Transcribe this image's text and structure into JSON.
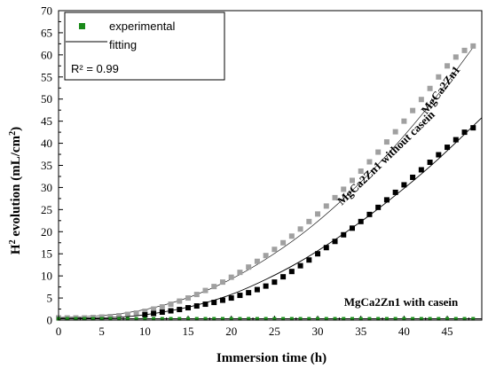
{
  "chart_data": {
    "type": "scatter",
    "xlabel": "Immersion time (h)",
    "ylabel": "H2 evolution (mL/cm2)",
    "xlim": [
      0,
      49
    ],
    "ylim": [
      0,
      70
    ],
    "xticks": [
      0,
      5,
      10,
      15,
      20,
      25,
      30,
      35,
      40,
      45
    ],
    "yticks": [
      0,
      5,
      10,
      15,
      20,
      25,
      30,
      35,
      40,
      45,
      50,
      55,
      60,
      65,
      70
    ],
    "grid": false,
    "legend": {
      "position": "top-left",
      "entries": [
        {
          "label": "experimental",
          "marker": "square",
          "color": "#1a8a1a"
        },
        {
          "label": "fitting",
          "marker": "line",
          "color": "#000000"
        },
        {
          "label": "R² = 0.99"
        }
      ]
    },
    "series": [
      {
        "name": "MgCa2Zn1",
        "color": "#a0a0a0",
        "x": [
          0,
          1,
          2,
          3,
          4,
          5,
          6,
          7,
          8,
          9,
          10,
          11,
          12,
          13,
          14,
          15,
          16,
          17,
          18,
          19,
          20,
          21,
          22,
          23,
          24,
          25,
          26,
          27,
          28,
          29,
          30,
          31,
          32,
          33,
          34,
          35,
          36,
          37,
          38,
          39,
          40,
          41,
          42,
          43,
          44,
          45,
          46,
          47,
          48
        ],
        "y": [
          0.5,
          0.5,
          0.5,
          0.5,
          0.6,
          0.7,
          0.8,
          1.0,
          1.3,
          1.6,
          2.0,
          2.5,
          3.0,
          3.6,
          4.3,
          5.0,
          5.8,
          6.7,
          7.6,
          8.6,
          9.7,
          10.8,
          12.0,
          13.3,
          14.6,
          16.0,
          17.5,
          19.0,
          20.6,
          22.3,
          24.0,
          25.8,
          27.7,
          29.6,
          31.6,
          33.7,
          35.8,
          38.0,
          40.3,
          42.6,
          45.0,
          47.4,
          49.9,
          52.4,
          55.0,
          57.5,
          59.5,
          61.0,
          62.0
        ],
        "fit_x": [
          0,
          4,
          8,
          12,
          16,
          20,
          24,
          28,
          32,
          36,
          40,
          44,
          48
        ],
        "fit_y": [
          0.6,
          0.9,
          1.7,
          3.3,
          5.8,
          9.3,
          13.8,
          19.2,
          25.7,
          33.2,
          41.7,
          51.2,
          61.7
        ]
      },
      {
        "name": "MgCa2Zn1 without casein",
        "color": "#000000",
        "x": [
          10,
          11,
          12,
          13,
          14,
          15,
          16,
          17,
          18,
          19,
          20,
          21,
          22,
          23,
          24,
          25,
          26,
          27,
          28,
          29,
          30,
          31,
          32,
          33,
          34,
          35,
          36,
          37,
          38,
          39,
          40,
          41,
          42,
          43,
          44,
          45,
          46,
          47,
          48
        ],
        "y": [
          1.2,
          1.5,
          1.8,
          2.1,
          2.4,
          2.8,
          3.2,
          3.6,
          4.0,
          4.5,
          5.0,
          5.6,
          6.2,
          6.9,
          7.7,
          8.6,
          9.8,
          11.0,
          12.3,
          13.6,
          15.0,
          16.4,
          17.8,
          19.3,
          20.8,
          22.3,
          23.9,
          25.5,
          27.2,
          28.9,
          30.6,
          32.3,
          34.0,
          35.7,
          37.4,
          39.1,
          40.8,
          42.5,
          43.5
        ],
        "fit_x": [
          0,
          4,
          8,
          12,
          16,
          20,
          24,
          28,
          32,
          36,
          40,
          44,
          49
        ],
        "fit_y": [
          0.4,
          0.5,
          0.8,
          1.8,
          3.4,
          5.8,
          9.2,
          13.3,
          18.2,
          23.7,
          29.8,
          36.5,
          45.8
        ]
      },
      {
        "name": "MgCa2Zn1 with casein",
        "color": "#1a8a1a",
        "x": [
          0,
          1,
          2,
          3,
          4,
          5,
          6,
          7,
          8,
          9,
          10,
          11,
          12,
          13,
          14,
          15,
          16,
          17,
          18,
          19,
          20,
          21,
          22,
          23,
          24,
          25,
          26,
          27,
          28,
          29,
          30,
          31,
          32,
          33,
          34,
          35,
          36,
          37,
          38,
          39,
          40,
          41,
          42,
          43,
          44,
          45,
          46,
          47,
          48
        ],
        "y": [
          0.3,
          0.3,
          0.3,
          0.3,
          0.3,
          0.3,
          0.3,
          0.3,
          0.3,
          0.3,
          0.3,
          0.3,
          0.3,
          0.3,
          0.3,
          0.3,
          0.3,
          0.3,
          0.3,
          0.3,
          0.3,
          0.3,
          0.3,
          0.3,
          0.3,
          0.3,
          0.3,
          0.3,
          0.3,
          0.3,
          0.3,
          0.3,
          0.3,
          0.3,
          0.3,
          0.3,
          0.3,
          0.3,
          0.3,
          0.3,
          0.3,
          0.3,
          0.3,
          0.3,
          0.3,
          0.3,
          0.3,
          0.3,
          0.3
        ],
        "fit_x": [
          0,
          49
        ],
        "fit_y": [
          0.3,
          0.3
        ]
      }
    ]
  }
}
